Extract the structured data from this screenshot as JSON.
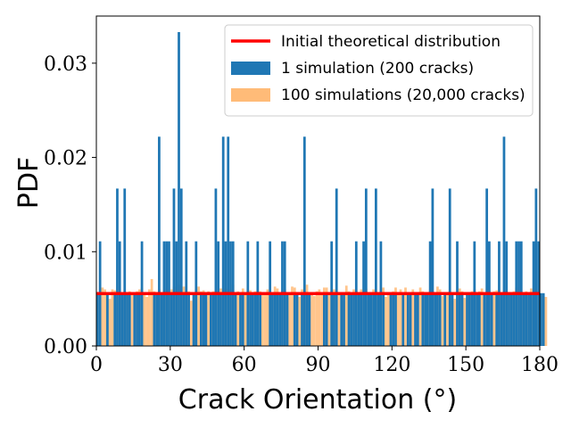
{
  "chart_data": {
    "type": "bar",
    "title": "",
    "xlabel": "Crack Orientation (°)",
    "ylabel": "PDF",
    "xlim": [
      0,
      180
    ],
    "ylim": [
      0,
      0.035
    ],
    "bin_width": 1,
    "x_ticks": [
      0,
      30,
      60,
      90,
      120,
      150,
      180
    ],
    "x_tick_labels": [
      "0",
      "30",
      "60",
      "90",
      "120",
      "150",
      "180"
    ],
    "y_ticks": [
      0,
      0.01,
      0.02,
      0.03
    ],
    "y_tick_labels": [
      "0.00",
      "0.01",
      "0.02",
      "0.03"
    ],
    "legend_position": "top-right",
    "series": [
      {
        "name": "Initial theoretical distribution",
        "kind": "line",
        "color": "#ff0000",
        "x": [
          0,
          180
        ],
        "y": [
          0.00556,
          0.00556
        ]
      },
      {
        "name": "1 simulation (200 cracks)",
        "kind": "bar",
        "color": "#1f77b4",
        "values": [
          0.0056,
          0.0111,
          0,
          0,
          0.0056,
          0,
          0,
          0.0056,
          0.0167,
          0.0111,
          0.0056,
          0.0167,
          0.0056,
          0.0056,
          0,
          0.0056,
          0.0056,
          0.0056,
          0.0111,
          0,
          0,
          0,
          0,
          0.0056,
          0.0056,
          0.0222,
          0.0056,
          0.0111,
          0.0111,
          0.0111,
          0.0056,
          0.0167,
          0.0111,
          0.0333,
          0.0167,
          0.0056,
          0.0111,
          0.0056,
          0,
          0.0056,
          0.0111,
          0,
          0.0056,
          0.0056,
          0.0056,
          0,
          0.0056,
          0.0056,
          0.0167,
          0.0111,
          0.0056,
          0.0222,
          0.0111,
          0.0222,
          0.0111,
          0.0111,
          0.0056,
          0,
          0.0056,
          0.0056,
          0,
          0.0111,
          0.0056,
          0.0056,
          0.0056,
          0.0111,
          0.0056,
          0,
          0,
          0,
          0.0111,
          0.0056,
          0.0056,
          0.0056,
          0.0056,
          0.0111,
          0.0111,
          0.0056,
          0,
          0,
          0.0056,
          0.0056,
          0,
          0.0056,
          0.0222,
          0.0056,
          0.0056,
          0,
          0,
          0,
          0,
          0,
          0.0056,
          0.0056,
          0,
          0.0111,
          0.0056,
          0.0167,
          0,
          0.0056,
          0.0056,
          0,
          0.0056,
          0.0056,
          0.0056,
          0.0111,
          0.0056,
          0.0056,
          0.0111,
          0.0167,
          0.0056,
          0.0056,
          0.0056,
          0.0167,
          0.0056,
          0.0111,
          0.0056,
          0,
          0,
          0.0056,
          0.0056,
          0.0056,
          0,
          0,
          0.0056,
          0,
          0.0056,
          0.0056,
          0,
          0.0056,
          0.0056,
          0,
          0.0056,
          0.0056,
          0.0056,
          0.0111,
          0.0167,
          0.0056,
          0.0056,
          0.0056,
          0,
          0.0056,
          0,
          0.0167,
          0.0056,
          0,
          0.0111,
          0.0056,
          0.0056,
          0,
          0.0056,
          0.0056,
          0.0056,
          0.0111,
          0.0056,
          0.0056,
          0,
          0.0056,
          0.0167,
          0.0111,
          0.0056,
          0,
          0.0056,
          0.0111,
          0.0056,
          0.0222,
          0.0111,
          0.0056,
          0.0056,
          0.0056,
          0.0111,
          0.0111,
          0.0111,
          0.0056,
          0.0056,
          0.0056,
          0.0056,
          0.0111,
          0.0167,
          0.0111,
          0.0056,
          0.0056
        ]
      },
      {
        "name": "100 simulations (20,000 cracks)",
        "kind": "bar",
        "color": "#ffbb78",
        "values": [
          0.0055,
          0.0045,
          0.0062,
          0.006,
          0.005,
          0.005,
          0.006,
          0.0059,
          0.0052,
          0.0055,
          0.0057,
          0.0052,
          0.0055,
          0.0058,
          0.0057,
          0.0055,
          0.0058,
          0.006,
          0.0062,
          0.0055,
          0.0052,
          0.006,
          0.0071,
          0.0058,
          0.0038,
          0.006,
          0.005,
          0.0057,
          0.0061,
          0.0057,
          0.006,
          0.0063,
          0.0058,
          0.0065,
          0.0063,
          0.0063,
          0.0054,
          0.0058,
          0.0048,
          0.0055,
          0.006,
          0.0063,
          0.0058,
          0.0059,
          0.0047,
          0.0058,
          0.0057,
          0.0058,
          0.0055,
          0.0058,
          0.0061,
          0.0053,
          0.0061,
          0.006,
          0.006,
          0.0065,
          0.0055,
          0.0058,
          0.0054,
          0.0061,
          0.0057,
          0.0058,
          0.0059,
          0.0051,
          0.0058,
          0.0046,
          0.0058,
          0.0056,
          0.0057,
          0.006,
          0.0054,
          0.0057,
          0.0063,
          0.0061,
          0.0055,
          0.0058,
          0.006,
          0.0051,
          0.0057,
          0.0063,
          0.0062,
          0.0057,
          0.0052,
          0.006,
          0.0058,
          0.0065,
          0.0047,
          0.0055,
          0.0053,
          0.0058,
          0.006,
          0.0056,
          0.0062,
          0.0062,
          0.0055,
          0.0058,
          0.006,
          0.0058,
          0.0056,
          0.0057,
          0.0048,
          0.0064,
          0.0058,
          0.0055,
          0.006,
          0.0058,
          0.0055,
          0.006,
          0.0049,
          0.0061,
          0.0048,
          0.0051,
          0.006,
          0.0058,
          0.0057,
          0.0061,
          0.0062,
          0.0052,
          0.0055,
          0.0055,
          0.0058,
          0.0062,
          0.0057,
          0.006,
          0.0055,
          0.0062,
          0.005,
          0.0057,
          0.006,
          0.0051,
          0.0056,
          0.0062,
          0.0058,
          0.0053,
          0.0055,
          0.0059,
          0.0058,
          0.0056,
          0.0063,
          0.006,
          0.0053,
          0.0055,
          0.0057,
          0.0058,
          0.0048,
          0.005,
          0.0055,
          0.0061,
          0.0058,
          0.0051,
          0.0049,
          0.0052,
          0.0058,
          0.006,
          0.0055,
          0.0058,
          0.0061,
          0.0046,
          0.0052,
          0.0059,
          0.0055,
          0.0058,
          0.0059,
          0.0056,
          0.0053,
          0.0058,
          0.0057,
          0.0055,
          0.0049,
          0.0058,
          0.0062,
          0.0052,
          0.0049,
          0.0055,
          0.0058,
          0.0053,
          0.0061,
          0.0057,
          0.0055,
          0.0058,
          0.0053,
          0.0055,
          0.0052
        ]
      }
    ]
  }
}
